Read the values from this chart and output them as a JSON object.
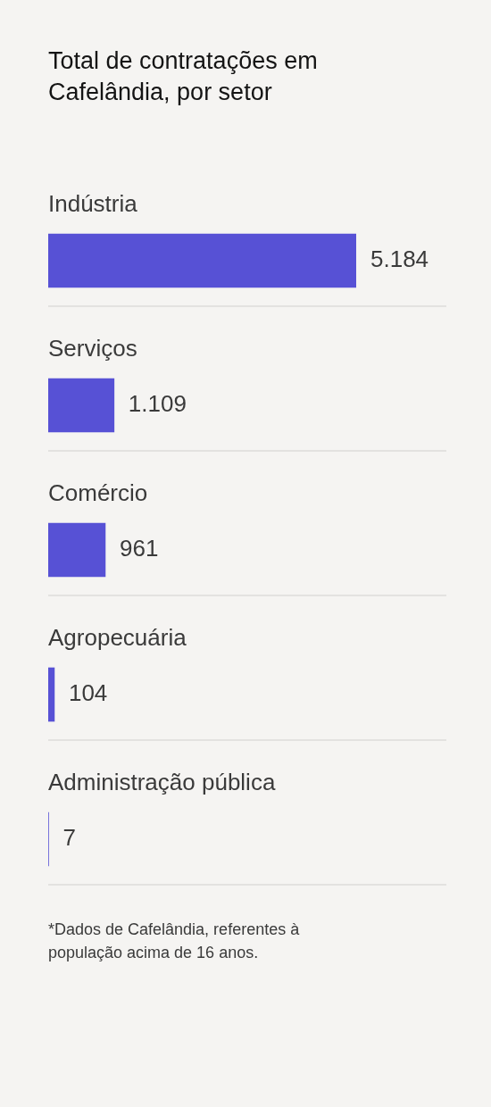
{
  "chart_data": {
    "type": "bar",
    "orientation": "horizontal",
    "title": "Total de contratações em Cafelândia, por setor",
    "categories": [
      "Indústria",
      "Serviços",
      "Comércio",
      "Agropecuária",
      "Administração pública"
    ],
    "values": [
      5184,
      1109,
      961,
      104,
      7
    ],
    "value_labels": [
      "5.184",
      "1.109",
      "961",
      "104",
      "7"
    ],
    "color": "#5751d5",
    "grid": "y",
    "annotations": [
      "*Dados de Cafelândia, referentes à população acima de 16 anos."
    ]
  }
}
